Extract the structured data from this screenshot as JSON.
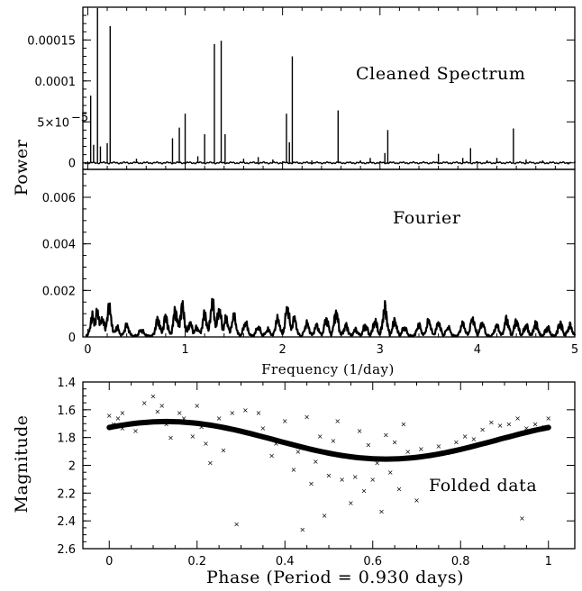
{
  "chart_data": [
    {
      "type": "line",
      "panel": "cleaned",
      "annotation": "Cleaned Spectrum",
      "ylabel": "Power",
      "xlim": [
        -0.05,
        5
      ],
      "ylim": [
        -8e-06,
        0.00019
      ],
      "yticks": [
        0,
        5e-05,
        0.0001,
        0.00015
      ],
      "yticklabels": [
        "0",
        "5×10",
        "0.0001",
        "0.00015"
      ],
      "ytick_exponent": "−5",
      "peaks": [
        {
          "x": 0.03,
          "y": 8.2e-05
        },
        {
          "x": 0.06,
          "y": 2.2e-05
        },
        {
          "x": 0.1,
          "y": 0.000189
        },
        {
          "x": 0.13,
          "y": 2e-05
        },
        {
          "x": 0.2,
          "y": 2.4e-05
        },
        {
          "x": 0.23,
          "y": 0.000167
        },
        {
          "x": 0.5,
          "y": 5e-06
        },
        {
          "x": 0.87,
          "y": 3e-05
        },
        {
          "x": 0.94,
          "y": 4.3e-05
        },
        {
          "x": 1.0,
          "y": 6e-05
        },
        {
          "x": 1.13,
          "y": 8e-06
        },
        {
          "x": 1.2,
          "y": 3.5e-05
        },
        {
          "x": 1.3,
          "y": 0.000145
        },
        {
          "x": 1.37,
          "y": 0.000149
        },
        {
          "x": 1.41,
          "y": 3.5e-05
        },
        {
          "x": 1.6,
          "y": 5e-06
        },
        {
          "x": 1.75,
          "y": 7e-06
        },
        {
          "x": 1.9,
          "y": 4e-06
        },
        {
          "x": 2.04,
          "y": 6e-05
        },
        {
          "x": 2.07,
          "y": 2.5e-05
        },
        {
          "x": 2.1,
          "y": 0.00013
        },
        {
          "x": 2.3,
          "y": 3e-06
        },
        {
          "x": 2.57,
          "y": 6.4e-05
        },
        {
          "x": 2.8,
          "y": 3e-06
        },
        {
          "x": 2.9,
          "y": 6e-06
        },
        {
          "x": 3.05,
          "y": 1.2e-05
        },
        {
          "x": 3.08,
          "y": 4e-05
        },
        {
          "x": 3.6,
          "y": 1.1e-05
        },
        {
          "x": 3.85,
          "y": 6e-06
        },
        {
          "x": 3.93,
          "y": 1.8e-05
        },
        {
          "x": 4.1,
          "y": 3e-06
        },
        {
          "x": 4.2,
          "y": 6e-06
        },
        {
          "x": 4.37,
          "y": 4.2e-05
        },
        {
          "x": 4.5,
          "y": 4e-06
        },
        {
          "x": 4.67,
          "y": 3e-06
        },
        {
          "x": 5.0,
          "y": 2e-06
        }
      ]
    },
    {
      "type": "line",
      "panel": "fourier",
      "annotation": "Fourier",
      "xlabel": "Frequency (1/day)",
      "xlim": [
        -0.05,
        5
      ],
      "ylim": [
        0,
        0.0072
      ],
      "xticks": [
        0,
        1,
        2,
        3,
        4,
        5
      ],
      "xticklabels": [
        "0",
        "1",
        "2",
        "3",
        "4",
        "5"
      ],
      "yticks": [
        0,
        0.002,
        0.004,
        0.006
      ],
      "yticklabels": [
        "0",
        "0.002",
        "0.004",
        "0.006"
      ],
      "bumps": [
        {
          "x": 0.05,
          "y": 0.0009
        },
        {
          "x": 0.1,
          "y": 0.0011
        },
        {
          "x": 0.15,
          "y": 0.0008
        },
        {
          "x": 0.22,
          "y": 0.0013
        },
        {
          "x": 0.3,
          "y": 0.0004
        },
        {
          "x": 0.4,
          "y": 0.0005
        },
        {
          "x": 0.55,
          "y": 0.0003
        },
        {
          "x": 0.72,
          "y": 0.0008
        },
        {
          "x": 0.8,
          "y": 0.0009
        },
        {
          "x": 0.9,
          "y": 0.0012
        },
        {
          "x": 0.97,
          "y": 0.0014
        },
        {
          "x": 1.05,
          "y": 0.0006
        },
        {
          "x": 1.12,
          "y": 0.0004
        },
        {
          "x": 1.2,
          "y": 0.001
        },
        {
          "x": 1.28,
          "y": 0.0015
        },
        {
          "x": 1.35,
          "y": 0.0012
        },
        {
          "x": 1.42,
          "y": 0.0008
        },
        {
          "x": 1.5,
          "y": 0.0009
        },
        {
          "x": 1.62,
          "y": 0.0006
        },
        {
          "x": 1.75,
          "y": 0.0004
        },
        {
          "x": 1.85,
          "y": 0.0003
        },
        {
          "x": 1.95,
          "y": 0.0008
        },
        {
          "x": 2.05,
          "y": 0.0013
        },
        {
          "x": 2.12,
          "y": 0.0008
        },
        {
          "x": 2.25,
          "y": 0.0006
        },
        {
          "x": 2.35,
          "y": 0.0005
        },
        {
          "x": 2.45,
          "y": 0.0008
        },
        {
          "x": 2.55,
          "y": 0.0011
        },
        {
          "x": 2.65,
          "y": 0.0005
        },
        {
          "x": 2.75,
          "y": 0.0003
        },
        {
          "x": 2.85,
          "y": 0.0005
        },
        {
          "x": 2.95,
          "y": 0.0007
        },
        {
          "x": 3.05,
          "y": 0.0013
        },
        {
          "x": 3.15,
          "y": 0.0007
        },
        {
          "x": 3.25,
          "y": 0.0004
        },
        {
          "x": 3.4,
          "y": 0.0005
        },
        {
          "x": 3.5,
          "y": 0.0007
        },
        {
          "x": 3.6,
          "y": 0.0006
        },
        {
          "x": 3.7,
          "y": 0.0004
        },
        {
          "x": 3.85,
          "y": 0.0006
        },
        {
          "x": 3.95,
          "y": 0.0008
        },
        {
          "x": 4.05,
          "y": 0.0006
        },
        {
          "x": 4.2,
          "y": 0.0005
        },
        {
          "x": 4.3,
          "y": 0.0008
        },
        {
          "x": 4.4,
          "y": 0.0007
        },
        {
          "x": 4.5,
          "y": 0.0005
        },
        {
          "x": 4.6,
          "y": 0.0006
        },
        {
          "x": 4.72,
          "y": 0.0004
        },
        {
          "x": 4.85,
          "y": 0.0006
        },
        {
          "x": 4.95,
          "y": 0.0005
        }
      ]
    },
    {
      "type": "scatter",
      "panel": "folded",
      "annotation": "Folded data",
      "xlabel": "Phase (Period = 0.930 days)",
      "ylabel": "Magnitude",
      "xlim": [
        -0.06,
        1.06
      ],
      "ylim": [
        2.6,
        1.4
      ],
      "y_inverted": true,
      "xticks": [
        0,
        0.2,
        0.4,
        0.6,
        0.8,
        1
      ],
      "xticklabels": [
        "0",
        "0.2",
        "0.4",
        "0.6",
        "0.8",
        "1"
      ],
      "yticks": [
        1.4,
        1.6,
        1.8,
        2.0,
        2.2,
        2.4,
        2.6
      ],
      "yticklabels": [
        "1.4",
        "1.6",
        "1.8",
        "2",
        "2.2",
        "2.4",
        "2.6"
      ],
      "fit": {
        "type": "sinusoid",
        "mean": 1.82,
        "amplitude": 0.135,
        "phase_of_maximum_brightness": 0.13
      },
      "marker": "×",
      "points": [
        {
          "x": 0.0,
          "y": 1.64
        },
        {
          "x": 0.01,
          "y": 1.7
        },
        {
          "x": 0.02,
          "y": 1.66
        },
        {
          "x": 0.03,
          "y": 1.73
        },
        {
          "x": 0.03,
          "y": 1.62
        },
        {
          "x": 0.05,
          "y": 1.7
        },
        {
          "x": 0.06,
          "y": 1.75
        },
        {
          "x": 0.08,
          "y": 1.55
        },
        {
          "x": 0.1,
          "y": 1.5
        },
        {
          "x": 0.11,
          "y": 1.61
        },
        {
          "x": 0.12,
          "y": 1.57
        },
        {
          "x": 0.13,
          "y": 1.7
        },
        {
          "x": 0.14,
          "y": 1.8
        },
        {
          "x": 0.16,
          "y": 1.62
        },
        {
          "x": 0.17,
          "y": 1.66
        },
        {
          "x": 0.19,
          "y": 1.79
        },
        {
          "x": 0.2,
          "y": 1.57
        },
        {
          "x": 0.21,
          "y": 1.72
        },
        {
          "x": 0.22,
          "y": 1.84
        },
        {
          "x": 0.23,
          "y": 1.98
        },
        {
          "x": 0.25,
          "y": 1.66
        },
        {
          "x": 0.26,
          "y": 1.89
        },
        {
          "x": 0.28,
          "y": 1.62
        },
        {
          "x": 0.29,
          "y": 2.42
        },
        {
          "x": 0.31,
          "y": 1.6
        },
        {
          "x": 0.32,
          "y": 1.77
        },
        {
          "x": 0.34,
          "y": 1.62
        },
        {
          "x": 0.35,
          "y": 1.73
        },
        {
          "x": 0.37,
          "y": 1.93
        },
        {
          "x": 0.38,
          "y": 1.84
        },
        {
          "x": 0.4,
          "y": 1.68
        },
        {
          "x": 0.42,
          "y": 2.03
        },
        {
          "x": 0.43,
          "y": 1.9
        },
        {
          "x": 0.44,
          "y": 2.46
        },
        {
          "x": 0.45,
          "y": 1.65
        },
        {
          "x": 0.46,
          "y": 2.13
        },
        {
          "x": 0.47,
          "y": 1.97
        },
        {
          "x": 0.48,
          "y": 1.79
        },
        {
          "x": 0.49,
          "y": 2.36
        },
        {
          "x": 0.5,
          "y": 2.07
        },
        {
          "x": 0.51,
          "y": 1.82
        },
        {
          "x": 0.52,
          "y": 1.68
        },
        {
          "x": 0.53,
          "y": 2.1
        },
        {
          "x": 0.54,
          "y": 1.93
        },
        {
          "x": 0.55,
          "y": 2.27
        },
        {
          "x": 0.56,
          "y": 2.08
        },
        {
          "x": 0.57,
          "y": 1.75
        },
        {
          "x": 0.58,
          "y": 2.18
        },
        {
          "x": 0.59,
          "y": 1.85
        },
        {
          "x": 0.6,
          "y": 2.1
        },
        {
          "x": 0.61,
          "y": 1.98
        },
        {
          "x": 0.62,
          "y": 2.33
        },
        {
          "x": 0.63,
          "y": 1.78
        },
        {
          "x": 0.64,
          "y": 2.05
        },
        {
          "x": 0.65,
          "y": 1.83
        },
        {
          "x": 0.66,
          "y": 2.17
        },
        {
          "x": 0.67,
          "y": 1.7
        },
        {
          "x": 0.68,
          "y": 1.9
        },
        {
          "x": 0.7,
          "y": 2.25
        },
        {
          "x": 0.71,
          "y": 1.88
        },
        {
          "x": 0.73,
          "y": 1.93
        },
        {
          "x": 0.75,
          "y": 1.86
        },
        {
          "x": 0.77,
          "y": 1.91
        },
        {
          "x": 0.79,
          "y": 1.83
        },
        {
          "x": 0.81,
          "y": 1.79
        },
        {
          "x": 0.83,
          "y": 1.81
        },
        {
          "x": 0.85,
          "y": 1.74
        },
        {
          "x": 0.87,
          "y": 1.69
        },
        {
          "x": 0.89,
          "y": 1.71
        },
        {
          "x": 0.91,
          "y": 1.7
        },
        {
          "x": 0.93,
          "y": 1.66
        },
        {
          "x": 0.94,
          "y": 2.38
        },
        {
          "x": 0.95,
          "y": 1.73
        },
        {
          "x": 0.97,
          "y": 1.7
        },
        {
          "x": 0.99,
          "y": 1.72
        },
        {
          "x": 1.0,
          "y": 1.66
        }
      ]
    }
  ]
}
